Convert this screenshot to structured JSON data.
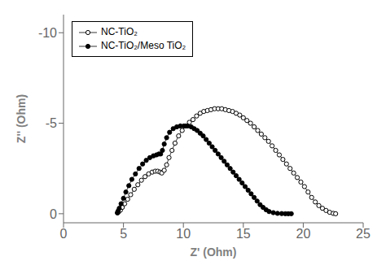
{
  "chart_data": {
    "type": "line",
    "xlabel": "Z' (Ohm)",
    "ylabel": "Z'' (Ohm)",
    "xlim": [
      0,
      25
    ],
    "ylim": [
      0.5,
      -11
    ],
    "xticks": [
      0,
      5,
      10,
      15,
      20,
      25
    ],
    "yticks": [
      0,
      -5,
      -10
    ],
    "legend": "upper left",
    "grid": false,
    "series": [
      {
        "name": "NC-TiO₂",
        "color": "#000000",
        "marker": "open_circle",
        "line_style": "solid",
        "x": [
          4.5,
          4.6,
          4.75,
          4.9,
          5.1,
          5.35,
          5.6,
          5.9,
          6.2,
          6.5,
          6.8,
          7.1,
          7.4,
          7.65,
          7.85,
          8.05,
          8.2,
          8.4,
          8.6,
          8.8,
          9.05,
          9.3,
          9.6,
          9.9,
          10.2,
          10.5,
          10.8,
          11.1,
          11.4,
          11.7,
          12.0,
          12.3,
          12.6,
          12.9,
          13.2,
          13.5,
          13.8,
          14.1,
          14.4,
          14.7,
          15.0,
          15.3,
          15.6,
          15.9,
          16.2,
          16.5,
          16.8,
          17.1,
          17.4,
          17.7,
          18.0,
          18.3,
          18.6,
          18.9,
          19.2,
          19.5,
          19.8,
          20.1,
          20.4,
          20.7,
          21.0,
          21.3,
          21.6,
          21.9,
          22.2,
          22.5,
          22.7
        ],
        "values": [
          -0.05,
          -0.1,
          -0.2,
          -0.35,
          -0.55,
          -0.8,
          -1.05,
          -1.35,
          -1.6,
          -1.85,
          -2.05,
          -2.2,
          -2.3,
          -2.35,
          -2.35,
          -2.3,
          -2.25,
          -2.4,
          -2.7,
          -3.1,
          -3.5,
          -3.9,
          -4.3,
          -4.6,
          -4.85,
          -5.05,
          -5.2,
          -5.4,
          -5.55,
          -5.65,
          -5.7,
          -5.75,
          -5.8,
          -5.8,
          -5.8,
          -5.75,
          -5.7,
          -5.65,
          -5.55,
          -5.45,
          -5.3,
          -5.15,
          -5.0,
          -4.8,
          -4.6,
          -4.4,
          -4.2,
          -4.0,
          -3.75,
          -3.5,
          -3.25,
          -3.0,
          -2.75,
          -2.5,
          -2.25,
          -2.0,
          -1.75,
          -1.5,
          -1.2,
          -0.9,
          -0.65,
          -0.45,
          -0.3,
          -0.18,
          -0.08,
          -0.02,
          0.0
        ]
      },
      {
        "name": "NC-TiO₂/Meso TiO₂",
        "color": "#000000",
        "marker": "filled_circle",
        "line_style": "solid",
        "x": [
          4.5,
          4.55,
          4.65,
          4.8,
          5.0,
          5.2,
          5.45,
          5.7,
          6.0,
          6.3,
          6.6,
          6.9,
          7.2,
          7.5,
          7.75,
          7.95,
          8.1,
          8.25,
          8.4,
          8.6,
          8.85,
          9.15,
          9.45,
          9.75,
          10.05,
          10.35,
          10.65,
          10.9,
          11.15,
          11.4,
          11.65,
          11.9,
          12.15,
          12.4,
          12.65,
          12.9,
          13.15,
          13.4,
          13.65,
          13.9,
          14.15,
          14.4,
          14.65,
          14.9,
          15.15,
          15.4,
          15.65,
          15.9,
          16.15,
          16.4,
          16.65,
          16.9,
          17.15,
          17.5,
          17.85,
          18.2,
          18.5,
          18.75,
          19.0
        ],
        "values": [
          -0.05,
          -0.15,
          -0.3,
          -0.55,
          -0.85,
          -1.2,
          -1.55,
          -1.9,
          -2.2,
          -2.5,
          -2.75,
          -2.95,
          -3.1,
          -3.2,
          -3.25,
          -3.3,
          -3.3,
          -3.5,
          -3.85,
          -4.2,
          -4.5,
          -4.7,
          -4.8,
          -4.85,
          -4.85,
          -4.85,
          -4.8,
          -4.7,
          -4.6,
          -4.45,
          -4.3,
          -4.1,
          -3.9,
          -3.7,
          -3.5,
          -3.3,
          -3.1,
          -2.9,
          -2.7,
          -2.5,
          -2.3,
          -2.1,
          -1.9,
          -1.7,
          -1.5,
          -1.3,
          -1.1,
          -0.9,
          -0.7,
          -0.5,
          -0.35,
          -0.22,
          -0.12,
          -0.06,
          -0.02,
          -0.01,
          0.0,
          0.0,
          0.0
        ]
      }
    ]
  }
}
